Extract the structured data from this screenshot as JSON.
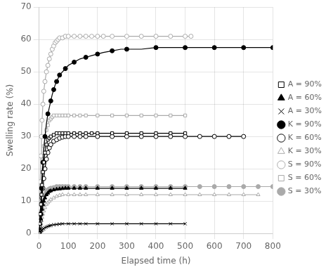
{
  "chart_data": {
    "type": "line",
    "xlabel": "Elapsed time (h)",
    "ylabel": "Swelling rate (%)",
    "xlim": [
      0,
      800
    ],
    "ylim": [
      0,
      70
    ],
    "xticks": [
      0,
      100,
      200,
      300,
      400,
      500,
      600,
      700,
      800
    ],
    "yticks": [
      0,
      10,
      20,
      30,
      40,
      50,
      60,
      70
    ],
    "grid": true,
    "legend": "right",
    "series": [
      {
        "name": "A = 90%",
        "color": "#000000",
        "marker": "square-open",
        "line_style": "solid",
        "x": [
          0,
          2,
          4,
          6,
          8,
          10,
          13,
          16,
          20,
          25,
          30,
          35,
          40,
          50,
          60,
          70,
          80,
          90,
          100,
          120,
          140,
          160,
          180,
          200,
          250,
          300,
          350,
          400,
          450,
          500
        ],
        "values": [
          0,
          3,
          6,
          9,
          12,
          15,
          19,
          22,
          25,
          27.5,
          29,
          29.5,
          30,
          30.5,
          31,
          31,
          31,
          31,
          31,
          31,
          31,
          31,
          31,
          31,
          31,
          31,
          31,
          31,
          31,
          31
        ]
      },
      {
        "name": "A = 60%",
        "color": "#000000",
        "marker": "triangle-filled",
        "line_style": "solid",
        "x": [
          0,
          2,
          4,
          6,
          8,
          10,
          13,
          16,
          20,
          25,
          30,
          35,
          40,
          50,
          60,
          70,
          80,
          90,
          100,
          120,
          140,
          160,
          200,
          250,
          300,
          350,
          400,
          450,
          500
        ],
        "values": [
          0,
          1.5,
          3,
          4.5,
          6,
          7.5,
          9,
          10,
          11,
          12,
          12.5,
          13,
          13.2,
          13.5,
          13.7,
          13.8,
          13.9,
          14,
          14,
          14,
          14,
          14,
          14,
          14,
          14,
          14,
          14,
          14,
          14
        ]
      },
      {
        "name": "A = 30%",
        "color": "#000000",
        "marker": "x",
        "line_style": "solid",
        "x": [
          0,
          2,
          4,
          6,
          8,
          10,
          13,
          16,
          20,
          25,
          30,
          35,
          40,
          50,
          60,
          70,
          80,
          100,
          120,
          140,
          160,
          200,
          250,
          300,
          350,
          400,
          450,
          500
        ],
        "values": [
          0,
          0.3,
          0.5,
          0.7,
          0.9,
          1.0,
          1.3,
          1.5,
          1.8,
          2.0,
          2.2,
          2.4,
          2.5,
          2.7,
          2.8,
          2.9,
          3.0,
          3.0,
          3.0,
          3.0,
          3.0,
          3.0,
          3.0,
          3.0,
          3.0,
          3.0,
          3.0,
          3.0
        ]
      },
      {
        "name": "K = 90%",
        "color": "#000000",
        "marker": "circle-filled",
        "line_style": "solid",
        "x": [
          0,
          2,
          4,
          6,
          8,
          10,
          13,
          16,
          20,
          25,
          30,
          35,
          40,
          45,
          50,
          55,
          60,
          65,
          70,
          80,
          90,
          100,
          120,
          140,
          160,
          180,
          200,
          220,
          250,
          280,
          300,
          350,
          400,
          450,
          500,
          550,
          600,
          650,
          700,
          750,
          800
        ],
        "values": [
          0,
          3,
          6,
          10,
          14,
          18,
          22,
          26,
          30,
          34,
          37,
          39,
          41,
          43,
          44.5,
          46,
          47,
          48,
          49,
          50,
          51,
          52,
          53,
          54,
          54.5,
          55,
          55.5,
          56,
          56.5,
          57,
          57,
          57,
          57.5,
          57.5,
          57.5,
          57.5,
          57.5,
          57.5,
          57.5,
          57.5,
          57.5
        ]
      },
      {
        "name": "K = 60%",
        "color": "#000000",
        "marker": "circle-open",
        "line_style": "solid",
        "x": [
          0,
          2,
          4,
          6,
          8,
          10,
          13,
          16,
          20,
          25,
          30,
          35,
          40,
          50,
          60,
          70,
          80,
          90,
          100,
          120,
          140,
          160,
          200,
          250,
          300,
          350,
          400,
          450,
          500,
          550,
          600,
          650,
          700
        ],
        "values": [
          0,
          2,
          4,
          6,
          9,
          11,
          14,
          17,
          20,
          23,
          25,
          26.5,
          27.5,
          28.5,
          29,
          29.5,
          29.8,
          30,
          30,
          30,
          30,
          30,
          30,
          30,
          30,
          30,
          30,
          30,
          30,
          30,
          30,
          30,
          30
        ]
      },
      {
        "name": "K = 30%",
        "color": "#aaaaaa",
        "marker": "triangle-open",
        "line_style": "solid",
        "x": [
          0,
          2,
          4,
          6,
          8,
          10,
          13,
          16,
          20,
          25,
          30,
          35,
          40,
          50,
          60,
          70,
          80,
          100,
          120,
          140,
          160,
          200,
          250,
          300,
          350,
          400,
          450,
          500,
          550,
          600,
          650,
          700,
          750
        ],
        "values": [
          0,
          1,
          2,
          3,
          4,
          5,
          6,
          7,
          8,
          9,
          9.5,
          10,
          10.5,
          11,
          11.5,
          11.8,
          12,
          12,
          12,
          12,
          12,
          12,
          12,
          12,
          12,
          12,
          12,
          12,
          12,
          12,
          12,
          12,
          12
        ]
      },
      {
        "name": "S = 90%",
        "color": "#aaaaaa",
        "marker": "circle-open",
        "line_style": "solid",
        "x": [
          0,
          2,
          4,
          6,
          8,
          10,
          13,
          16,
          20,
          25,
          30,
          35,
          40,
          45,
          50,
          55,
          60,
          65,
          70,
          80,
          90,
          100,
          120,
          140,
          160,
          180,
          200,
          220,
          250,
          300,
          350,
          400,
          450,
          500,
          520
        ],
        "values": [
          0,
          8,
          16,
          24,
          30,
          35,
          40,
          44,
          47,
          50,
          52,
          54,
          55.5,
          57,
          58,
          59,
          59.5,
          60,
          60.5,
          60.5,
          61,
          61,
          61,
          61,
          61,
          61,
          61,
          61,
          61,
          61,
          61,
          61,
          61,
          61,
          61
        ]
      },
      {
        "name": "S = 60%",
        "color": "#aaaaaa",
        "marker": "square-open",
        "line_style": "solid",
        "x": [
          0,
          2,
          4,
          6,
          8,
          10,
          13,
          16,
          20,
          25,
          30,
          35,
          40,
          45,
          50,
          60,
          70,
          80,
          90,
          100,
          120,
          140,
          160,
          200,
          250,
          300,
          350,
          400,
          450,
          500
        ],
        "values": [
          0,
          3,
          7,
          11,
          15,
          19,
          23,
          27,
          30,
          32,
          33.5,
          35,
          35.5,
          36,
          36.5,
          36.5,
          36.5,
          36.5,
          36.5,
          36.5,
          36.5,
          36.5,
          36.5,
          36.5,
          36.5,
          36.5,
          36.5,
          36.5,
          36.5,
          36.5
        ]
      },
      {
        "name": "S = 30%",
        "color": "#aaaaaa",
        "marker": "circle-filled",
        "line_style": "solid",
        "x": [
          0,
          2,
          4,
          6,
          8,
          10,
          13,
          16,
          20,
          25,
          30,
          35,
          40,
          50,
          60,
          70,
          80,
          90,
          100,
          120,
          140,
          160,
          200,
          250,
          300,
          350,
          400,
          450,
          500,
          550,
          600,
          650,
          700,
          750,
          800
        ],
        "values": [
          0,
          1.5,
          3,
          5,
          7,
          8.5,
          10,
          11,
          12,
          13,
          13.5,
          13.8,
          14,
          14.2,
          14.5,
          14.5,
          14.5,
          14.5,
          14.5,
          14.5,
          14.5,
          14.5,
          14.5,
          14.5,
          14.5,
          14.5,
          14.5,
          14.5,
          14.5,
          14.5,
          14.5,
          14.5,
          14.5,
          14.5,
          14.5
        ]
      }
    ]
  }
}
